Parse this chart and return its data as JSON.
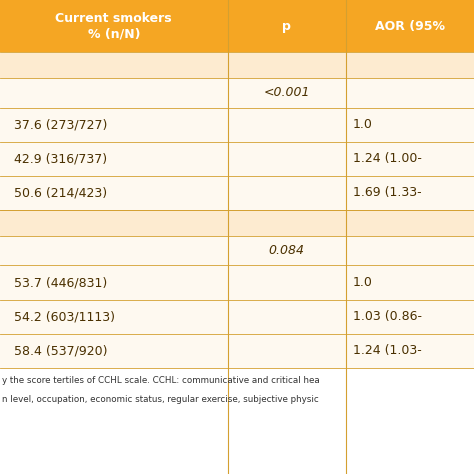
{
  "header_bg": "#F5A623",
  "header_text_color": "#FFFFFF",
  "section_bg": "#FDEBD0",
  "row_bg_light": "#FEF9F0",
  "row_bg_white": "#FFFFFF",
  "text_color": "#4A3000",
  "col_headers": [
    "Current smokers\n% (n/N)",
    "p",
    "AOR (95%"
  ],
  "section1_p": "<0.001",
  "section2_p": "0.084",
  "rows": [
    [
      "37.6 (273/727)",
      "",
      "1.0"
    ],
    [
      "42.9 (316/737)",
      "",
      "1.24 (1.00-"
    ],
    [
      "50.6 (214/423)",
      "",
      "1.69 (1.33-"
    ],
    [
      "53.7 (446/831)",
      "",
      "1.0"
    ],
    [
      "54.2 (603/1113)",
      "",
      "1.03 (0.86-"
    ],
    [
      "58.4 (537/920)",
      "",
      "1.24 (1.03-"
    ]
  ],
  "footer_lines": [
    "y the score tertiles of CCHL scale. CCHL: communicative and critical hea",
    "n level, occupation, economic status, regular exercise, subjective physic"
  ],
  "fig_width": 4.74,
  "fig_height": 4.74
}
